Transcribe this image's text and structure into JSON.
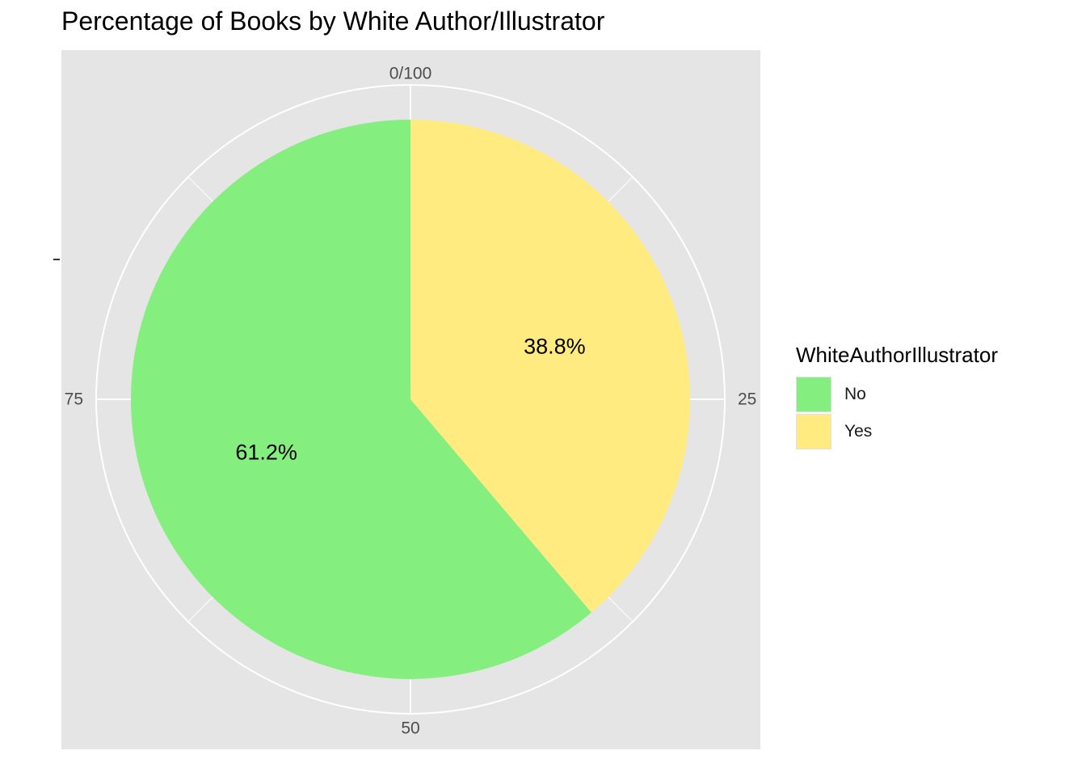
{
  "chart_data": {
    "type": "pie",
    "title": "Percentage of Books by White Author/Illustrator",
    "legend_title": "WhiteAuthorIllustrator",
    "legend_placement": "right",
    "categories": [
      "No",
      "Yes"
    ],
    "values": [
      61.2,
      38.8
    ],
    "labels": [
      "61.2%",
      "38.8%"
    ],
    "colors": [
      "#84ee7f",
      "#ffeb7f"
    ],
    "theta_ticks": [
      {
        "value": 0,
        "label": "0/100"
      },
      {
        "value": 25,
        "label": "25"
      },
      {
        "value": 50,
        "label": "50"
      },
      {
        "value": 75,
        "label": "75"
      }
    ],
    "panel_color": "#e5e5e5",
    "grid": true
  }
}
